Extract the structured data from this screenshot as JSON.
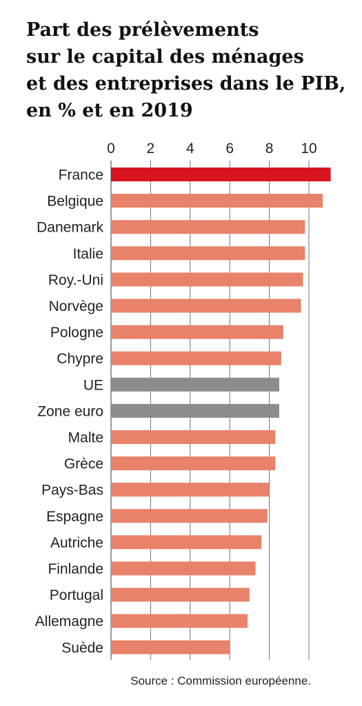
{
  "chart_data": {
    "type": "bar",
    "orientation": "horizontal",
    "title_lines": [
      "Part des prélèvements",
      "sur le capital des ménages",
      "et des entreprises dans le PIB,",
      "en % et en 2019"
    ],
    "categories": [
      "France",
      "Belgique",
      "Danemark",
      "Italie",
      "Roy.-Uni",
      "Norvège",
      "Pologne",
      "Chypre",
      "UE",
      "Zone euro",
      "Malte",
      "Grèce",
      "Pays-Bas",
      "Espagne",
      "Autriche",
      "Finlande",
      "Portugal",
      "Allemagne",
      "Suède"
    ],
    "values": [
      11.1,
      10.7,
      9.8,
      9.8,
      9.7,
      9.6,
      8.7,
      8.6,
      8.5,
      8.5,
      8.3,
      8.3,
      8.0,
      7.9,
      7.6,
      7.3,
      7.0,
      6.9,
      6.0
    ],
    "highlight": [
      "primary",
      "normal",
      "normal",
      "normal",
      "normal",
      "normal",
      "normal",
      "normal",
      "aggregate",
      "aggregate",
      "normal",
      "normal",
      "normal",
      "normal",
      "normal",
      "normal",
      "normal",
      "normal",
      "normal"
    ],
    "colors": {
      "primary": "#d7141f",
      "normal": "#e8826a",
      "aggregate": "#8c8c8c",
      "grid": "#6f6f6f"
    },
    "xticks": [
      0,
      2,
      4,
      6,
      8,
      10
    ],
    "xlim": [
      0,
      11.1
    ],
    "grid": true,
    "source": "Source : Commission européenne."
  }
}
